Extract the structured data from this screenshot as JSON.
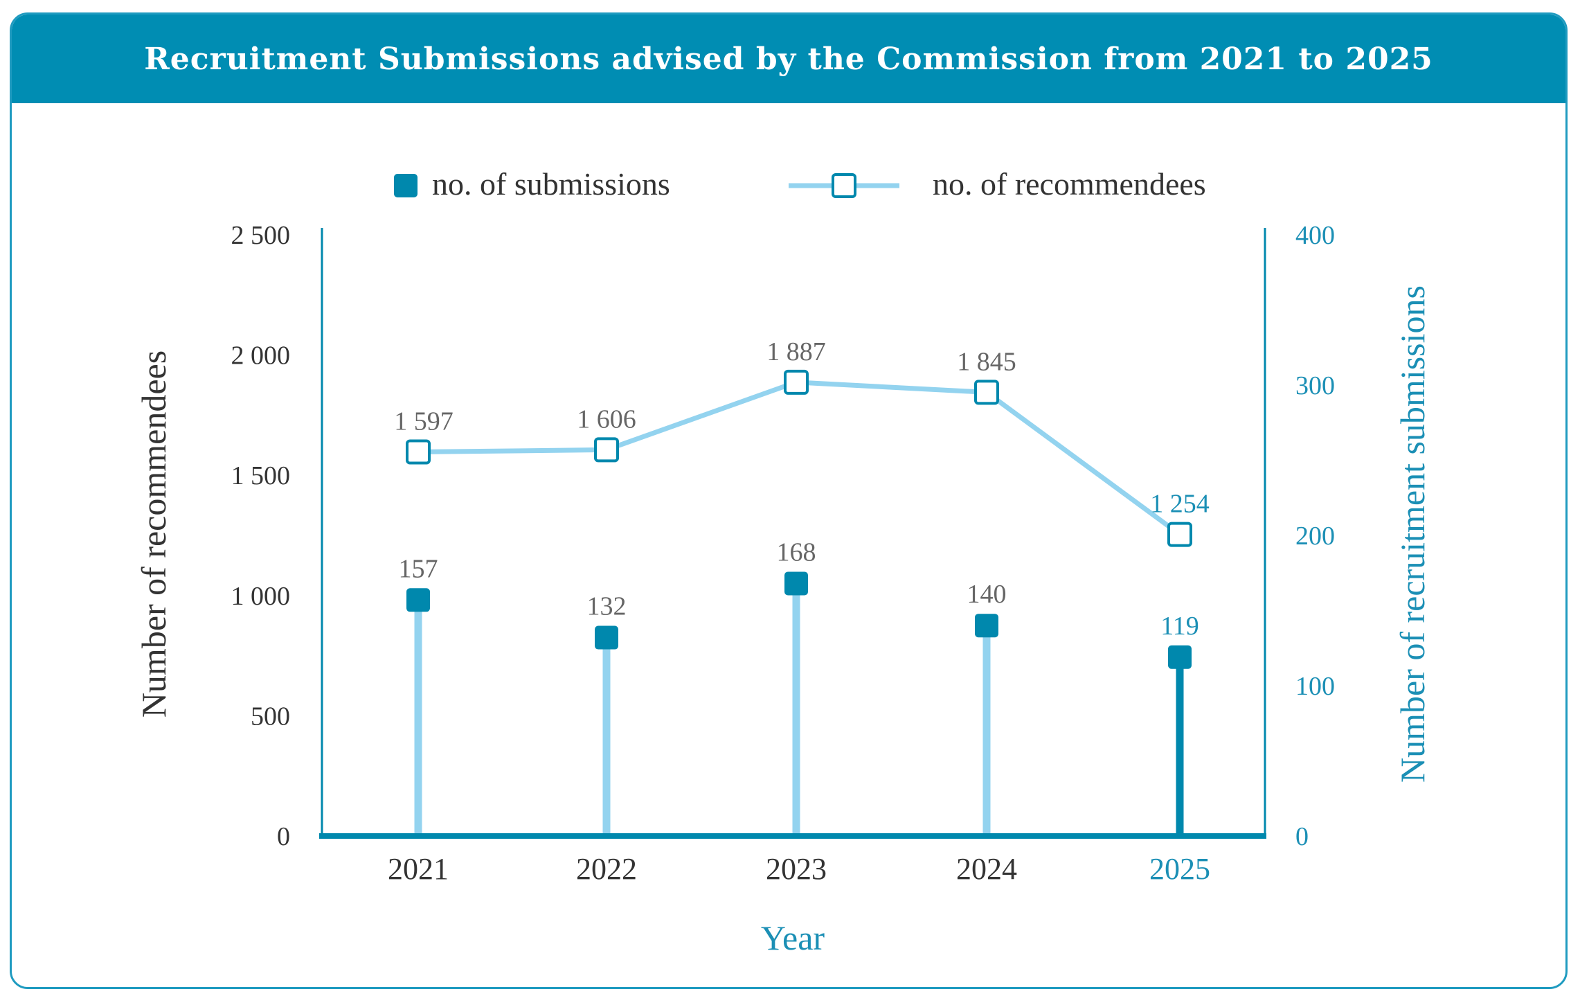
{
  "title": "Recruitment Submissions advised by the Commission from 2021 to 2025",
  "colors": {
    "banner": "#008db3",
    "dark_blue": "#0088ad",
    "light_blue": "#93d3ef",
    "text_dark": "#333333",
    "text_grey": "#666666",
    "accent_text": "#1b8fb5"
  },
  "chart_data": {
    "type": "bar",
    "categories": [
      "2021",
      "2022",
      "2023",
      "2024",
      "2025"
    ],
    "xlabel": "Year",
    "ylabel_left": "Number of recommendees",
    "ylabel_right": "Number of recruitment submissions",
    "left_axis": {
      "ylim": [
        0,
        2500
      ],
      "ticks": [
        0,
        500,
        1000,
        1500,
        2000,
        2500
      ],
      "tick_labels": [
        "0",
        "500",
        "1 000",
        "1 500",
        "2 000",
        "2 500"
      ]
    },
    "right_axis": {
      "ylim": [
        0,
        400
      ],
      "ticks": [
        0,
        100,
        200,
        300,
        400
      ],
      "tick_labels": [
        "0",
        "100",
        "200",
        "300",
        "400"
      ]
    },
    "legend": {
      "placement": "top-center",
      "entries": [
        "no. of submissions",
        "no. of recommendees"
      ]
    },
    "grid": false,
    "series": [
      {
        "name": "no. of submissions",
        "type": "lollipop",
        "axis": "right",
        "values": [
          157,
          132,
          168,
          140,
          119
        ],
        "labels": [
          "157",
          "132",
          "168",
          "140",
          "119"
        ]
      },
      {
        "name": "no. of recommendees",
        "type": "line",
        "axis": "left",
        "values": [
          1597,
          1606,
          1887,
          1845,
          1254
        ],
        "labels": [
          "1 597",
          "1 606",
          "1 887",
          "1 845",
          "1 254"
        ]
      }
    ],
    "highlight_index": 4
  }
}
